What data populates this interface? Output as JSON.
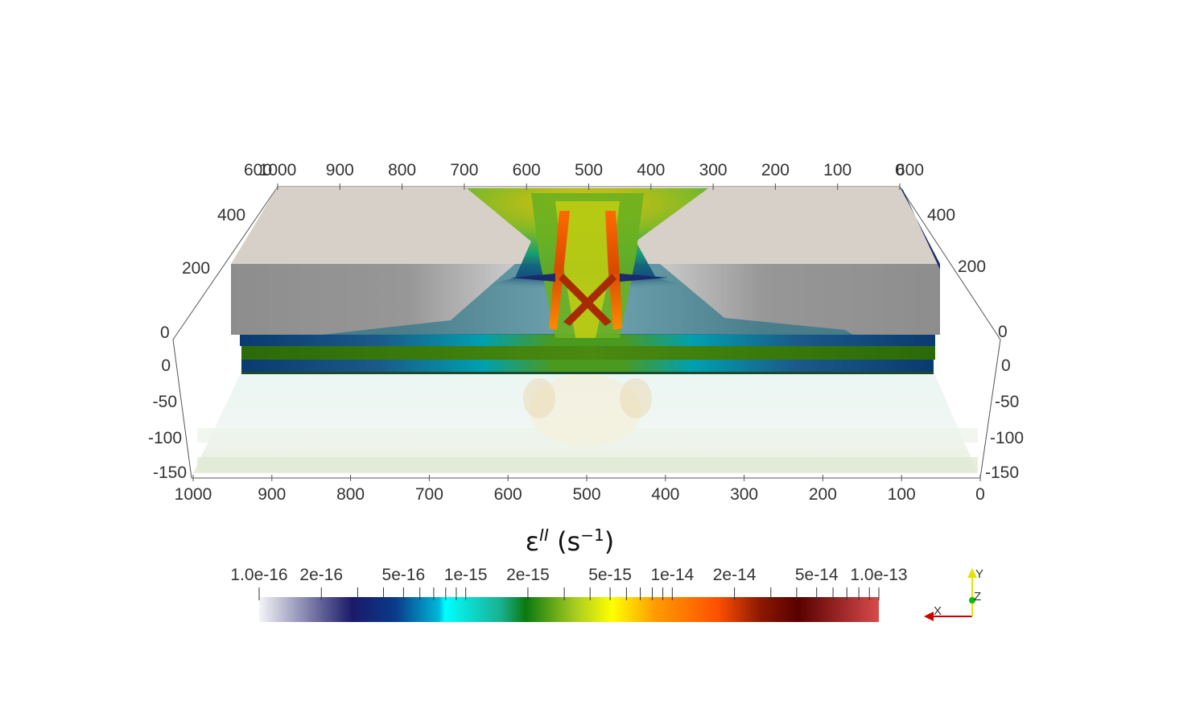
{
  "colorbar": {
    "title": "ε",
    "title_super": "II",
    "title_unit_open": " (s",
    "title_unit_super": "−1",
    "title_unit_close": ")",
    "labels": [
      "1.0e-16",
      "2e-16",
      "5e-16",
      "1e-15",
      "2e-15",
      "5e-15",
      "1e-14",
      "2e-14",
      "5e-14",
      "1.0e-13"
    ],
    "range": [
      1e-16,
      1e-13
    ],
    "scale": "log",
    "colors": [
      "#f4f4f8",
      "#1a1a6a",
      "#00b8d8",
      "#00ffff",
      "#1ab090",
      "#0a7a10",
      "#c8e020",
      "#ffff00",
      "#ff8000",
      "#ff5000",
      "#8a1800",
      "#5a0000",
      "#d84a4a"
    ]
  },
  "axes": {
    "top_x_labels": [
      "1000",
      "900",
      "800",
      "700",
      "600",
      "500",
      "400",
      "300",
      "200",
      "100",
      "0"
    ],
    "bottom_x_labels": [
      "1000",
      "900",
      "800",
      "700",
      "600",
      "500",
      "400",
      "300",
      "200",
      "100",
      "0"
    ],
    "top_corner_left": "600",
    "top_corner_right": "600",
    "z_left_labels": [
      "400",
      "200",
      "0"
    ],
    "z_right_labels": [
      "400",
      "200",
      "0"
    ],
    "y_left_labels": [
      "0",
      "-50",
      "-100",
      "-150"
    ],
    "y_right_labels": [
      "0",
      "-50",
      "-100",
      "-150"
    ]
  },
  "orientation_axes": {
    "x_label": "X",
    "y_label": "Y",
    "z_label": "Z",
    "x_color": "#cc0000",
    "y_color": "#e8e000",
    "z_color": "#00c000"
  },
  "colors": {
    "model_top": "#d6d0c8",
    "model_front": "#8e8e8e",
    "background": "#ffffff"
  }
}
